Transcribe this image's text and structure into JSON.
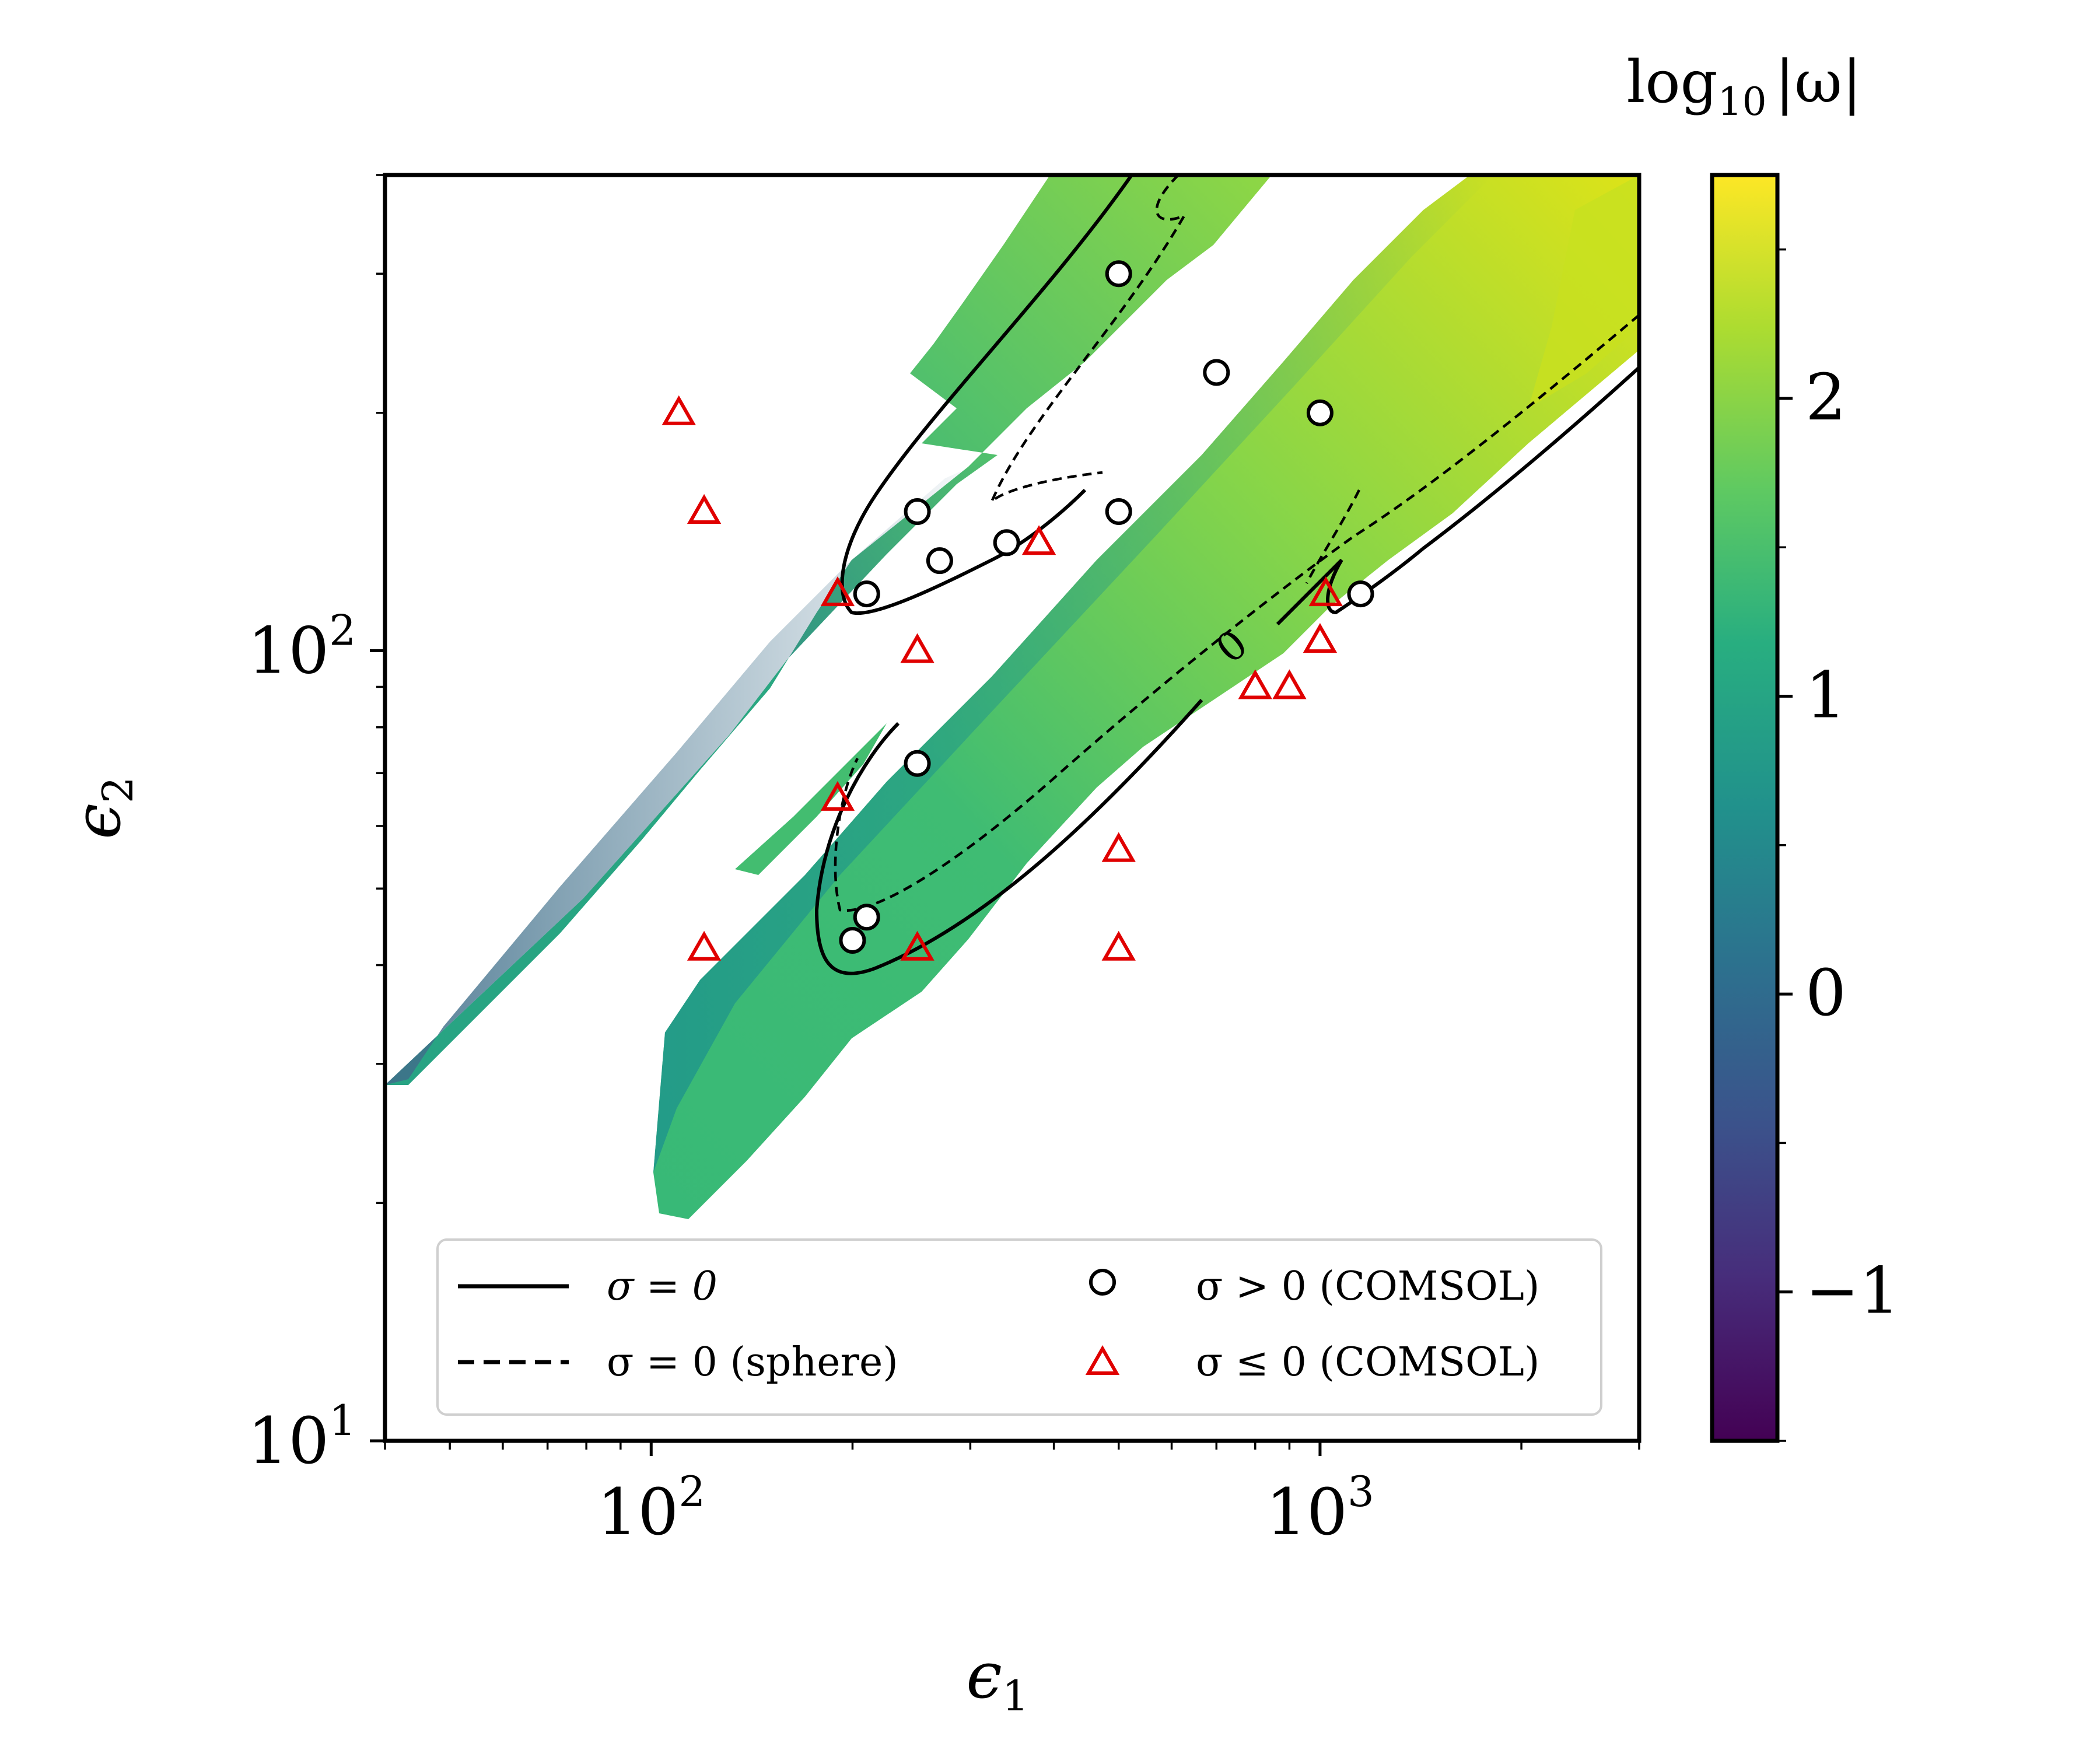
{
  "chart_data": {
    "type": "heatmap",
    "xlabel": "ϵ",
    "xlabel_sub": "1",
    "ylabel": "ϵ",
    "ylabel_sub": "2",
    "xscale": "log",
    "yscale": "log",
    "xlim": [
      40,
      3000
    ],
    "ylim": [
      10,
      400
    ],
    "x_ticks": [
      {
        "base": "10",
        "exp": "2",
        "value": 100
      },
      {
        "base": "10",
        "exp": "3",
        "value": 1000
      }
    ],
    "y_ticks": [
      {
        "base": "10",
        "exp": "1",
        "value": 10
      },
      {
        "base": "10",
        "exp": "2",
        "value": 100
      }
    ],
    "colorbar": {
      "title": "log",
      "title_sub": "10",
      "title_suffix": "|ω|",
      "range": [
        -1.5,
        2.75
      ],
      "colormap": [
        "#440154",
        "#3b528b",
        "#21918c",
        "#5ec962",
        "#fde725"
      ],
      "ticks": [
        {
          "label": "−1",
          "value": -1
        },
        {
          "label": "0",
          "value": 0
        },
        {
          "label": "1",
          "value": 1
        },
        {
          "label": "2",
          "value": 2
        }
      ]
    },
    "contour_label": "0",
    "regions": [
      {
        "name": "upper-left band",
        "value_range": [
          -0.2,
          1.6
        ]
      },
      {
        "name": "main band",
        "value_range": [
          1.0,
          2.6
        ]
      }
    ],
    "series": [
      {
        "name": "σ > 0 (COMSOL)",
        "marker": "circle",
        "color": "#000000",
        "points": [
          [
            500,
            300
          ],
          [
            250,
            150
          ],
          [
            700,
            225
          ],
          [
            1000,
            200
          ],
          [
            500,
            150
          ],
          [
            270,
            130
          ],
          [
            340,
            137
          ],
          [
            210,
            118
          ],
          [
            1150,
            118
          ],
          [
            250,
            72
          ],
          [
            210,
            46
          ],
          [
            200,
            43
          ]
        ]
      },
      {
        "name": "σ ≤ 0 (COMSOL)",
        "marker": "triangle",
        "color": "#e00000",
        "points": [
          [
            110,
            200
          ],
          [
            120,
            150
          ],
          [
            380,
            137
          ],
          [
            190,
            118
          ],
          [
            250,
            100
          ],
          [
            190,
            65
          ],
          [
            1020,
            118
          ],
          [
            1000,
            103
          ],
          [
            800,
            90
          ],
          [
            900,
            90
          ],
          [
            500,
            56
          ],
          [
            500,
            42
          ],
          [
            250,
            42
          ],
          [
            120,
            42
          ]
        ]
      }
    ],
    "legend": {
      "placement": "lower-center",
      "entries": [
        {
          "label": "σ = 0",
          "style": "solid line"
        },
        {
          "label": "σ > 0 (COMSOL)",
          "style": "open circle"
        },
        {
          "label": "σ = 0 (sphere)",
          "style": "dashed line"
        },
        {
          "label": "σ ≤ 0 (COMSOL)",
          "style": "red triangle"
        }
      ]
    }
  }
}
